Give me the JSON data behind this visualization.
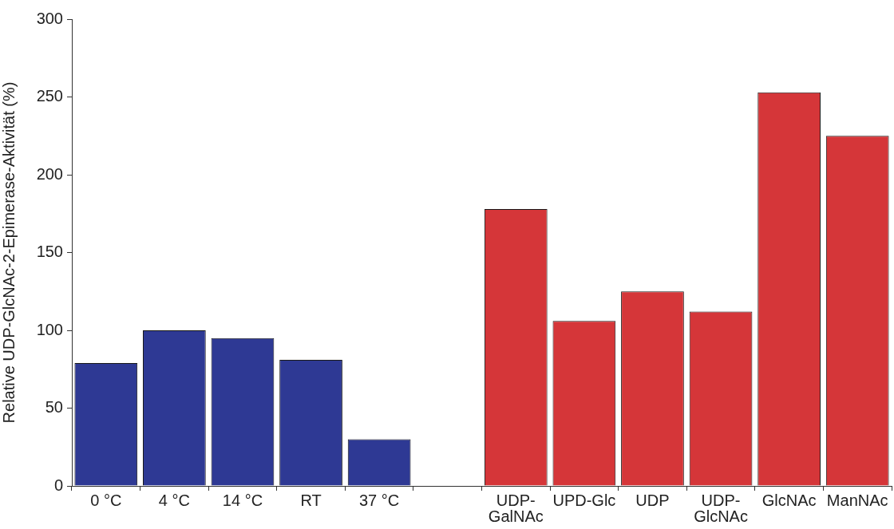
{
  "chart_data": {
    "type": "bar",
    "ylabel": "Relative UDP-GlcNAc-2-Epimerase-Aktivität (%)",
    "categories": [
      "0 °C",
      "4 °C",
      "14 °C",
      "RT",
      "37 °C",
      null,
      "UDP-GalNAc",
      "UPD-Glc",
      "UDP",
      "UDP-GlcNAc",
      "GlcNAc",
      "ManNAc"
    ],
    "values": [
      79,
      100,
      95,
      81,
      30,
      null,
      178,
      106,
      125,
      112,
      253,
      225
    ],
    "colors": [
      "#2e3994",
      "#2e3994",
      "#2e3994",
      "#2e3994",
      "#2e3994",
      null,
      "#d53639",
      "#d53639",
      "#d53639",
      "#d53639",
      "#d53639",
      "#d53639"
    ],
    "ylim": [
      0,
      300
    ],
    "yticks": [
      0,
      50,
      100,
      150,
      200,
      250,
      300
    ]
  }
}
